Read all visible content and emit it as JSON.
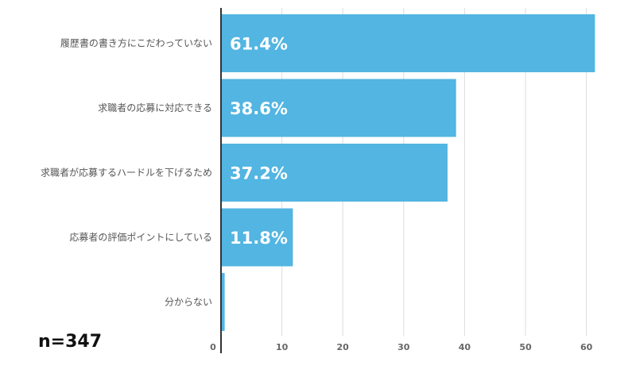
{
  "chart_data": {
    "type": "bar",
    "orientation": "horizontal",
    "categories": [
      "履歴書の書き方にこだわっていない",
      "求職者の応募に対応できる",
      "求職者が応募するハードルを下げるため",
      "応募者の評価ポイントにしている",
      "分からない"
    ],
    "values": [
      61.4,
      38.6,
      37.2,
      11.8,
      0.6
    ],
    "data_labels": [
      "61.4%",
      "38.6%",
      "37.2%",
      "11.8%",
      ""
    ],
    "xlim": [
      0,
      60
    ],
    "xticks": [
      0,
      10,
      20,
      30,
      40,
      50,
      60
    ],
    "grid": true,
    "bar_color": "#52b5e2",
    "gridline_color": "#dddddd",
    "axis_color": "#333333"
  },
  "note": "n=347"
}
